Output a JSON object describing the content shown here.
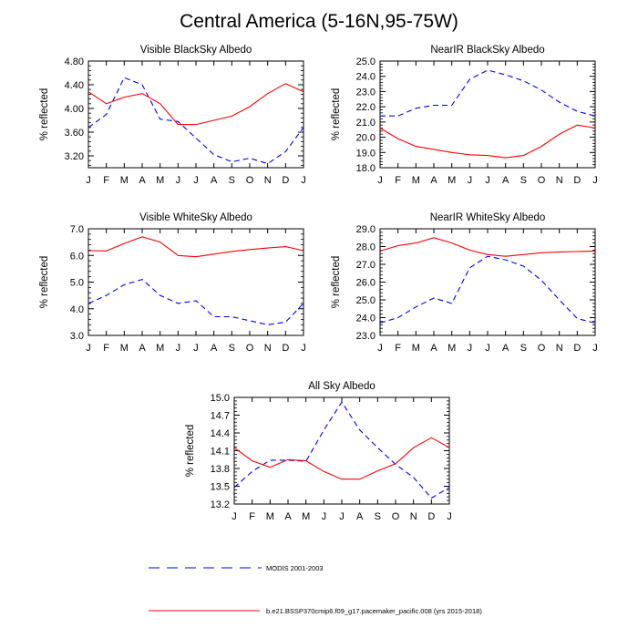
{
  "title": "Central America (5-16N,95-75W)",
  "months": [
    "J",
    "F",
    "M",
    "A",
    "M",
    "J",
    "J",
    "A",
    "S",
    "O",
    "N",
    "D",
    "J"
  ],
  "legend": [
    {
      "label": "MODIS 2001-2003",
      "style": "dashed",
      "color": "#0000ff"
    },
    {
      "label": "b.e21.BSSP370cmip6.f09_g17.pacemaker_pacific.008 (yrs 2015-2018)",
      "style": "solid",
      "color": "#ff0000"
    }
  ],
  "chart_data": [
    {
      "type": "line",
      "title": "Visible BlackSky Albedo",
      "xlabel": "",
      "ylabel": "% reflected",
      "ylim": [
        3.0,
        4.8
      ],
      "yticks": [
        "3.20",
        "3.60",
        "4.00",
        "4.40",
        "4.80"
      ],
      "yticks_values": [
        3.2,
        3.6,
        4.0,
        4.4,
        4.8
      ],
      "x": [
        "J",
        "F",
        "M",
        "A",
        "M",
        "J",
        "J",
        "A",
        "S",
        "O",
        "N",
        "D",
        "J"
      ],
      "series": [
        {
          "name": "MODIS 2001-2003",
          "color": "#0000ff",
          "dashed": true,
          "values": [
            3.68,
            3.9,
            4.52,
            4.4,
            3.82,
            3.78,
            3.5,
            3.22,
            3.1,
            3.16,
            3.07,
            3.27,
            3.68
          ]
        },
        {
          "name": "b.e21.BSSP370cmip6.f09_g17.pacemaker_pacific.008 (yrs 2015-2018)",
          "color": "#ff0000",
          "dashed": false,
          "values": [
            4.28,
            4.08,
            4.19,
            4.25,
            4.08,
            3.73,
            3.73,
            3.8,
            3.87,
            4.03,
            4.25,
            4.42,
            4.28
          ]
        }
      ]
    },
    {
      "type": "line",
      "title": "NearIR BlackSky Albedo",
      "xlabel": "",
      "ylabel": "% reflected",
      "ylim": [
        18.0,
        25.0
      ],
      "yticks": [
        "18.0",
        "19.0",
        "20.0",
        "21.0",
        "22.0",
        "23.0",
        "24.0",
        "25.0"
      ],
      "yticks_values": [
        18,
        19,
        20,
        21,
        22,
        23,
        24,
        25
      ],
      "x": [
        "J",
        "F",
        "M",
        "A",
        "M",
        "J",
        "J",
        "A",
        "S",
        "O",
        "N",
        "D",
        "J"
      ],
      "series": [
        {
          "name": "MODIS 2001-2003",
          "color": "#0000ff",
          "dashed": true,
          "values": [
            21.4,
            21.4,
            21.9,
            22.1,
            22.1,
            23.8,
            24.4,
            24.1,
            23.7,
            23.1,
            22.3,
            21.7,
            21.4
          ]
        },
        {
          "name": "b.e21.BSSP370cmip6.f09_g17.pacemaker_pacific.008 (yrs 2015-2018)",
          "color": "#ff0000",
          "dashed": false,
          "values": [
            20.6,
            19.9,
            19.4,
            19.2,
            19.0,
            18.85,
            18.8,
            18.65,
            18.8,
            19.4,
            20.2,
            20.8,
            20.6
          ]
        }
      ]
    },
    {
      "type": "line",
      "title": "Visible WhiteSky Albedo",
      "xlabel": "",
      "ylabel": "% reflected",
      "ylim": [
        3.0,
        7.0
      ],
      "yticks": [
        "3.0",
        "4.0",
        "5.0",
        "6.0",
        "7.0"
      ],
      "yticks_values": [
        3,
        4,
        5,
        6,
        7
      ],
      "x": [
        "J",
        "F",
        "M",
        "A",
        "M",
        "J",
        "J",
        "A",
        "S",
        "O",
        "N",
        "D",
        "J"
      ],
      "series": [
        {
          "name": "MODIS 2001-2003",
          "color": "#0000ff",
          "dashed": true,
          "values": [
            4.2,
            4.5,
            4.9,
            5.1,
            4.5,
            4.2,
            4.3,
            3.7,
            3.7,
            3.55,
            3.4,
            3.5,
            4.2
          ]
        },
        {
          "name": "b.e21.BSSP370cmip6.f09_g17.pacemaker_pacific.008 (yrs 2015-2018)",
          "color": "#ff0000",
          "dashed": false,
          "values": [
            6.18,
            6.17,
            6.45,
            6.7,
            6.5,
            6.0,
            5.95,
            6.05,
            6.15,
            6.22,
            6.28,
            6.33,
            6.18
          ]
        }
      ]
    },
    {
      "type": "line",
      "title": "NearIR WhiteSky Albedo",
      "xlabel": "",
      "ylabel": "% reflected",
      "ylim": [
        23.0,
        29.0
      ],
      "yticks": [
        "23.0",
        "24.0",
        "25.0",
        "26.0",
        "27.0",
        "28.0",
        "29.0"
      ],
      "yticks_values": [
        23,
        24,
        25,
        26,
        27,
        28,
        29
      ],
      "x": [
        "J",
        "F",
        "M",
        "A",
        "M",
        "J",
        "J",
        "A",
        "S",
        "O",
        "N",
        "D",
        "J"
      ],
      "series": [
        {
          "name": "MODIS 2001-2003",
          "color": "#0000ff",
          "dashed": true,
          "values": [
            23.7,
            24.0,
            24.6,
            25.1,
            24.8,
            26.8,
            27.45,
            27.25,
            26.9,
            26.1,
            25.0,
            23.95,
            23.7
          ]
        },
        {
          "name": "b.e21.BSSP370cmip6.f09_g17.pacemaker_pacific.008 (yrs 2015-2018)",
          "color": "#ff0000",
          "dashed": false,
          "values": [
            27.75,
            28.05,
            28.2,
            28.5,
            28.2,
            27.8,
            27.55,
            27.45,
            27.55,
            27.65,
            27.7,
            27.72,
            27.75
          ]
        }
      ]
    },
    {
      "type": "line",
      "title": "All Sky Albedo",
      "xlabel": "",
      "ylabel": "% reflected",
      "ylim": [
        13.2,
        15.0
      ],
      "yticks": [
        "13.2",
        "13.5",
        "13.8",
        "14.1",
        "14.4",
        "14.7",
        "15.0"
      ],
      "yticks_values": [
        13.2,
        13.5,
        13.8,
        14.1,
        14.4,
        14.7,
        15.0
      ],
      "x": [
        "J",
        "F",
        "M",
        "A",
        "M",
        "J",
        "J",
        "A",
        "S",
        "O",
        "N",
        "D",
        "J"
      ],
      "series": [
        {
          "name": "MODIS 2001-2003",
          "color": "#0000ff",
          "dashed": true,
          "values": [
            13.48,
            13.75,
            13.94,
            13.94,
            13.92,
            14.45,
            14.92,
            14.45,
            14.15,
            13.87,
            13.65,
            13.3,
            13.48
          ]
        },
        {
          "name": "b.e21.BSSP370cmip6.f09_g17.pacemaker_pacific.008 (yrs 2015-2018)",
          "color": "#ff0000",
          "dashed": false,
          "values": [
            14.15,
            13.93,
            13.82,
            13.95,
            13.93,
            13.75,
            13.62,
            13.62,
            13.76,
            13.88,
            14.15,
            14.32,
            14.15
          ]
        }
      ]
    }
  ]
}
